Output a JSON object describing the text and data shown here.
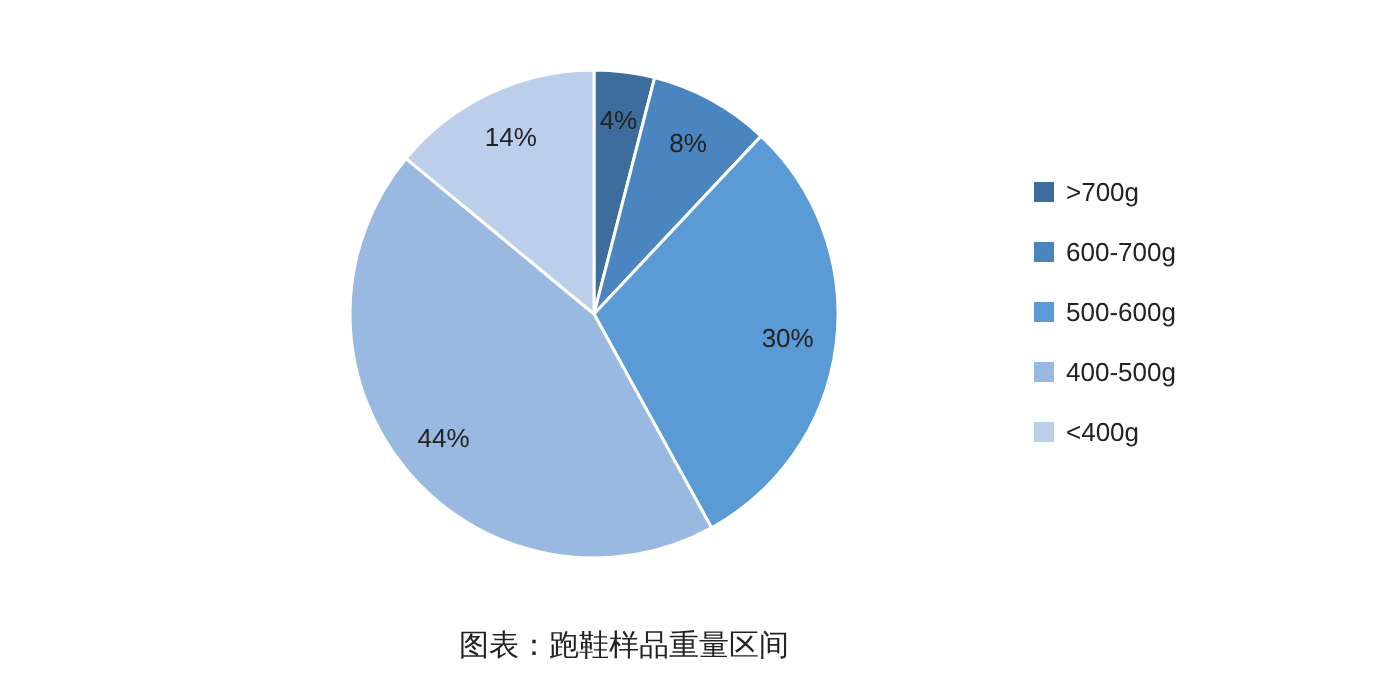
{
  "chart_data": {
    "type": "pie",
    "categories": [
      ">700g",
      "600-700g",
      "500-600g",
      "400-500g",
      "<400g"
    ],
    "values": [
      4,
      8,
      30,
      44,
      14
    ],
    "value_labels": [
      "4%",
      "8%",
      "30%",
      "44%",
      "14%"
    ],
    "colors": [
      "#3d6d9c",
      "#4a85bf",
      "#5b9bd5",
      "#9ab9e0",
      "#bccfea"
    ],
    "legend": "right",
    "annotations": [
      "图表：跑鞋样品重量区间"
    ]
  }
}
